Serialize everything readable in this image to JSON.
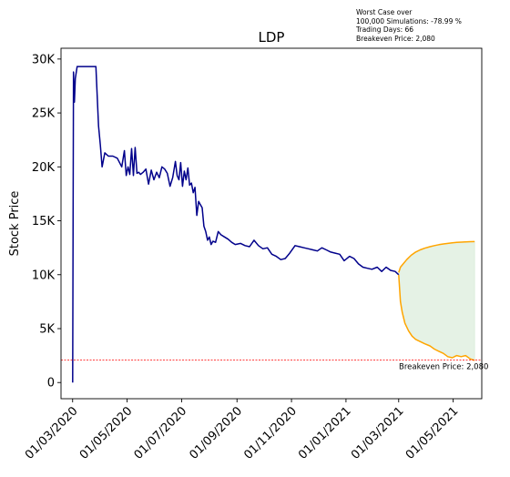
{
  "chart_data": {
    "type": "line",
    "title": "LDP",
    "ylabel": "Stock Price",
    "xlabel": "",
    "ylim": [
      -1500,
      31000
    ],
    "xlim": [
      "2020-02-17",
      "2021-06-02"
    ],
    "yticks": [
      0,
      5000,
      10000,
      15000,
      20000,
      25000,
      30000
    ],
    "ytick_labels": [
      "0",
      "5K",
      "10K",
      "15K",
      "20K",
      "25K",
      "30K"
    ],
    "xticks": [
      "2020-03-01",
      "2020-05-01",
      "2020-07-01",
      "2020-09-01",
      "2020-11-01",
      "2021-01-01",
      "2021-03-01",
      "2021-05-01"
    ],
    "xtick_labels": [
      "01/03/2020",
      "01/05/2020",
      "01/07/2020",
      "01/09/2020",
      "01/11/2020",
      "01/01/2021",
      "01/03/2021",
      "01/05/2021"
    ],
    "grid": false,
    "annotation_lines": [
      "Worst Case over",
      "100,000 Simulations: -78.99 %",
      "Trading Days: 66",
      "Breakeven Price: 2,080"
    ],
    "breakeven": {
      "value": 2080,
      "label": "Breakeven Price: 2,080",
      "color": "#ff0000"
    },
    "series": [
      {
        "color": "#00008b",
        "x": [
          "2020-03-01",
          "2020-03-02",
          "2020-03-03",
          "2020-03-04",
          "2020-03-06",
          "2020-03-08",
          "2020-03-13",
          "2020-03-20",
          "2020-03-27",
          "2020-03-30",
          "2020-04-01",
          "2020-04-03",
          "2020-04-06",
          "2020-04-10",
          "2020-04-15",
          "2020-04-20",
          "2020-04-25",
          "2020-04-28",
          "2020-04-30",
          "2020-05-02",
          "2020-05-04",
          "2020-05-06",
          "2020-05-08",
          "2020-05-10",
          "2020-05-12",
          "2020-05-14",
          "2020-05-16",
          "2020-05-19",
          "2020-05-22",
          "2020-05-25",
          "2020-05-28",
          "2020-05-31",
          "2020-06-03",
          "2020-06-06",
          "2020-06-09",
          "2020-06-12",
          "2020-06-15",
          "2020-06-18",
          "2020-06-21",
          "2020-06-24",
          "2020-06-26",
          "2020-06-28",
          "2020-06-30",
          "2020-07-02",
          "2020-07-04",
          "2020-07-06",
          "2020-07-08",
          "2020-07-10",
          "2020-07-12",
          "2020-07-14",
          "2020-07-16",
          "2020-07-18",
          "2020-07-20",
          "2020-07-22",
          "2020-07-24",
          "2020-07-26",
          "2020-07-28",
          "2020-07-30",
          "2020-08-01",
          "2020-08-03",
          "2020-08-05",
          "2020-08-08",
          "2020-08-11",
          "2020-08-14",
          "2020-08-18",
          "2020-08-22",
          "2020-08-26",
          "2020-08-30",
          "2020-09-05",
          "2020-09-10",
          "2020-09-15",
          "2020-09-20",
          "2020-09-25",
          "2020-09-30",
          "2020-10-05",
          "2020-10-10",
          "2020-10-15",
          "2020-10-20",
          "2020-10-25",
          "2020-10-30",
          "2020-11-05",
          "2020-11-10",
          "2020-11-15",
          "2020-11-20",
          "2020-11-25",
          "2020-11-30",
          "2020-12-05",
          "2020-12-10",
          "2020-12-15",
          "2020-12-20",
          "2020-12-25",
          "2020-12-30",
          "2021-01-05",
          "2021-01-10",
          "2021-01-15",
          "2021-01-20",
          "2021-01-25",
          "2021-01-30",
          "2021-02-05",
          "2021-02-10",
          "2021-02-15",
          "2021-02-20",
          "2021-02-25",
          "2021-03-01"
        ],
        "y": [
          0,
          28800,
          26000,
          28200,
          29300,
          29300,
          29300,
          29300,
          29300,
          23800,
          22000,
          20000,
          21300,
          21000,
          21000,
          20800,
          20000,
          21500,
          19200,
          20000,
          19300,
          21700,
          19200,
          21800,
          19400,
          19500,
          19300,
          19500,
          19800,
          18400,
          19700,
          18800,
          19500,
          19000,
          20000,
          19800,
          19400,
          18200,
          19000,
          20500,
          19200,
          18800,
          20400,
          18200,
          19600,
          18800,
          19900,
          18300,
          18500,
          17600,
          18100,
          15500,
          16800,
          16500,
          16200,
          14500,
          14000,
          13200,
          13500,
          12800,
          13100,
          13000,
          14000,
          13700,
          13500,
          13300,
          13000,
          12800,
          12900,
          12700,
          12600,
          13200,
          12700,
          12400,
          12500,
          11900,
          11700,
          11400,
          11500,
          12000,
          12700,
          12600,
          12500,
          12400,
          12300,
          12200,
          12500,
          12300,
          12100,
          12000,
          11900,
          11300,
          11700,
          11500,
          11000,
          10700,
          10600,
          10500,
          10700,
          10300,
          10700,
          10400,
          10300,
          10000
        ]
      },
      {
        "color": "#ffa500",
        "x": [
          "2021-03-01",
          "2021-03-03",
          "2021-03-06",
          "2021-03-10",
          "2021-03-15",
          "2021-03-20",
          "2021-03-25",
          "2021-03-30",
          "2021-04-05",
          "2021-04-10",
          "2021-04-15",
          "2021-04-20",
          "2021-04-25",
          "2021-04-30",
          "2021-05-05",
          "2021-05-10",
          "2021-05-15",
          "2021-05-20",
          "2021-05-25"
        ],
        "y": [
          10200,
          10700,
          11000,
          11400,
          11800,
          12100,
          12300,
          12450,
          12600,
          12700,
          12780,
          12850,
          12900,
          12950,
          12990,
          13020,
          13040,
          13060,
          13070
        ]
      },
      {
        "color": "#ffa500",
        "x": [
          "2021-03-01",
          "2021-03-03",
          "2021-03-05",
          "2021-03-08",
          "2021-03-12",
          "2021-03-16",
          "2021-03-20",
          "2021-03-25",
          "2021-03-30",
          "2021-04-05",
          "2021-04-10",
          "2021-04-15",
          "2021-04-20",
          "2021-04-25",
          "2021-04-30",
          "2021-05-05",
          "2021-05-10",
          "2021-05-15",
          "2021-05-20",
          "2021-05-25"
        ],
        "y": [
          10000,
          7500,
          6500,
          5500,
          4800,
          4300,
          4000,
          3800,
          3600,
          3400,
          3100,
          2900,
          2700,
          2400,
          2300,
          2500,
          2400,
          2500,
          2200,
          2050
        ]
      }
    ],
    "fill_color": "#008000"
  }
}
